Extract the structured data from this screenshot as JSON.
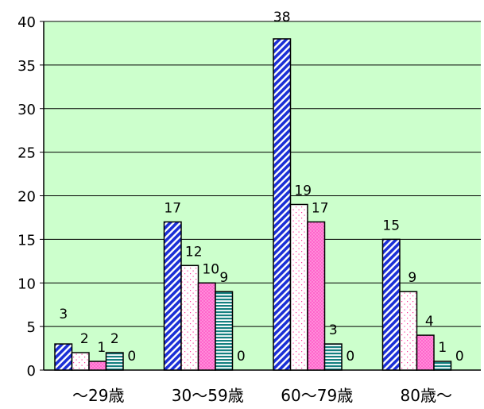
{
  "chart_data": {
    "type": "bar",
    "categories": [
      "～29歳",
      "30～59歳",
      "60～79歳",
      "80歳～"
    ],
    "series": [
      {
        "values": [
          3,
          17,
          38,
          15
        ],
        "pattern": "diagonal-stripes-blue"
      },
      {
        "values": [
          2,
          12,
          19,
          9
        ],
        "pattern": "dotted-white"
      },
      {
        "values": [
          1,
          10,
          17,
          4
        ],
        "pattern": "dotted-pink"
      },
      {
        "values": [
          2,
          9,
          3,
          1
        ],
        "pattern": "horizontal-stripes-teal"
      },
      {
        "values": [
          0,
          0,
          0,
          0
        ],
        "pattern": "none"
      }
    ],
    "ylim": [
      0,
      40
    ],
    "yticks": [
      "0",
      "5",
      "10",
      "15",
      "20",
      "25",
      "30",
      "35",
      "40"
    ],
    "grid": true,
    "legend": "none",
    "colors": {
      "plot_background": "#ccffcc",
      "gridline": "#000000",
      "blue_stripe": "#1a2fd6",
      "pink_fill": "#ff66cc",
      "teal_stripe": "#158080"
    }
  }
}
